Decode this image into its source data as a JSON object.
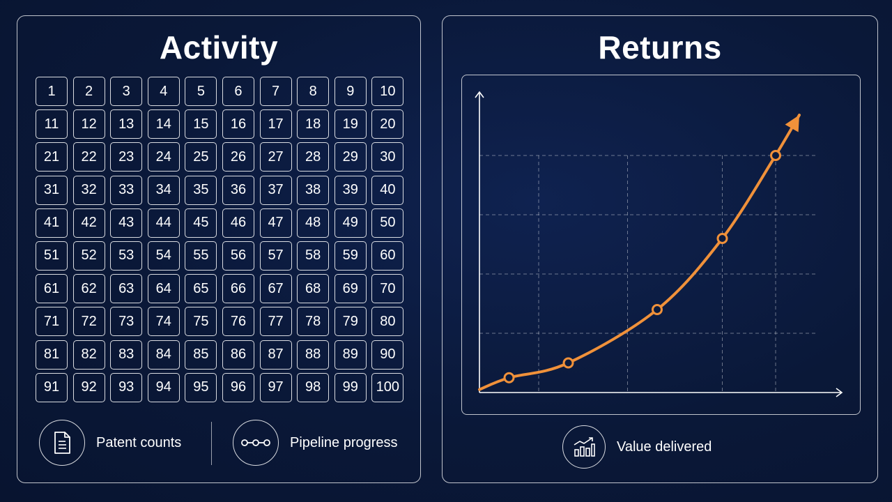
{
  "activity": {
    "title": "Activity",
    "grid_numbers": [
      "1",
      "2",
      "3",
      "4",
      "5",
      "6",
      "7",
      "8",
      "9",
      "10",
      "11",
      "12",
      "13",
      "14",
      "15",
      "16",
      "17",
      "18",
      "19",
      "20",
      "21",
      "22",
      "23",
      "24",
      "25",
      "26",
      "27",
      "28",
      "29",
      "30",
      "31",
      "32",
      "33",
      "34",
      "35",
      "36",
      "37",
      "38",
      "39",
      "40",
      "41",
      "42",
      "43",
      "44",
      "45",
      "46",
      "47",
      "48",
      "49",
      "50",
      "51",
      "52",
      "53",
      "54",
      "55",
      "56",
      "57",
      "58",
      "59",
      "60",
      "61",
      "62",
      "63",
      "64",
      "65",
      "66",
      "67",
      "68",
      "69",
      "70",
      "71",
      "72",
      "73",
      "74",
      "75",
      "76",
      "77",
      "78",
      "79",
      "80",
      "81",
      "82",
      "83",
      "84",
      "85",
      "86",
      "87",
      "88",
      "89",
      "90",
      "91",
      "92",
      "93",
      "94",
      "95",
      "96",
      "97",
      "98",
      "99",
      "100"
    ],
    "legend": [
      {
        "label": "Patent counts",
        "icon": "document-icon"
      },
      {
        "label": "Pipeline progress",
        "icon": "pipeline-icon"
      }
    ]
  },
  "returns": {
    "title": "Returns",
    "legend": {
      "label": "Value delivered",
      "icon": "bar-chart-growth-icon"
    }
  },
  "colors": {
    "background": "#0a1838",
    "curve": "#f0913a",
    "outline": "#ffffff"
  },
  "chart_data": {
    "type": "line",
    "title": "",
    "xlabel": "",
    "ylabel": "",
    "xlim": [
      0,
      6
    ],
    "ylim": [
      0,
      5
    ],
    "grid": true,
    "trend_arrow": true,
    "x": [
      0,
      0.5,
      1.5,
      3,
      4.1,
      5
    ],
    "values": [
      0.05,
      0.25,
      0.5,
      1.4,
      2.6,
      4.0
    ],
    "markers_on": [
      1,
      2,
      3,
      4,
      5
    ]
  }
}
